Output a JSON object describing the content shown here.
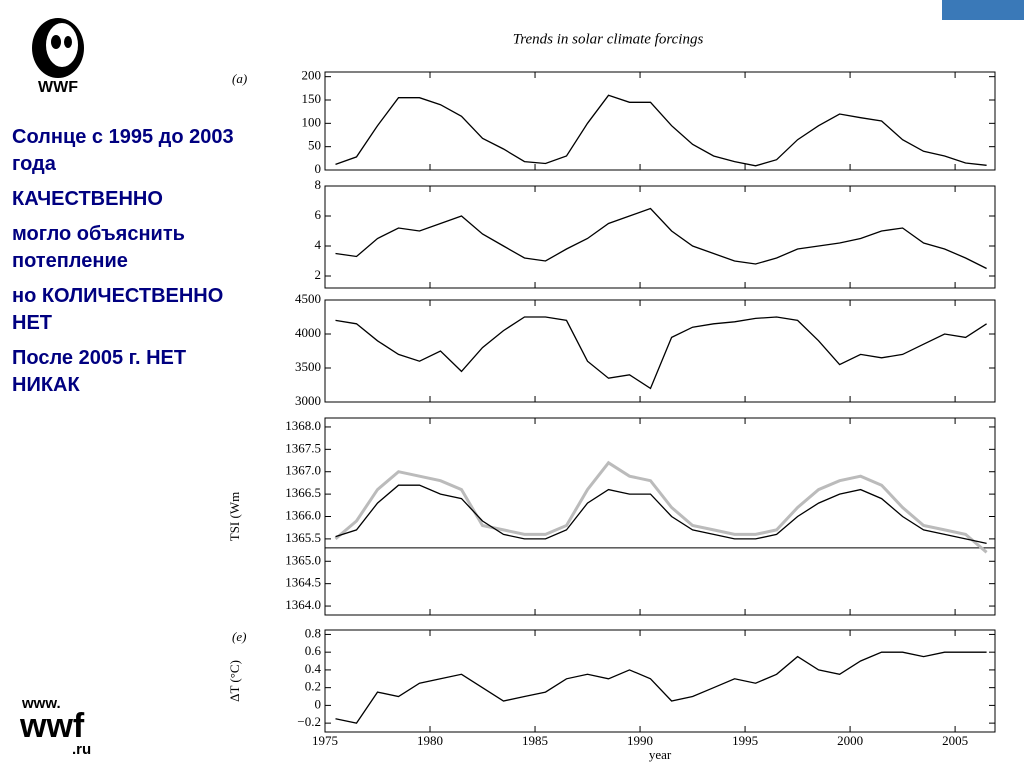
{
  "slide": {
    "logo": "WWF",
    "lines": [
      "Солнце с 1995 до 2003 года",
      "КАЧЕСТВЕННО",
      "могло объяснить потепление",
      "но КОЛИЧЕСТВЕННО НЕТ",
      "После 2005 г. НЕТ НИКАК"
    ],
    "footer": [
      "www.",
      "wwf",
      ".ru"
    ]
  },
  "chart_data": [
    {
      "type": "line",
      "title": "Trends in solar climate forcings",
      "label": "(a)",
      "xlim": [
        1975,
        2006.9
      ],
      "ylim": [
        0,
        210
      ],
      "yticks": [
        0,
        50,
        100,
        150,
        200
      ],
      "x": [
        1975.5,
        1976.5,
        1977.5,
        1978.5,
        1979.5,
        1980.5,
        1981.5,
        1982.5,
        1983.5,
        1984.5,
        1985.5,
        1986.5,
        1987.5,
        1988.5,
        1989.5,
        1990.5,
        1991.5,
        1992.5,
        1993.5,
        1994.5,
        1995.5,
        1996.5,
        1997.5,
        1998.5,
        1999.5,
        2000.5,
        2001.5,
        2002.5,
        2003.5,
        2004.5,
        2005.5,
        2006.5
      ],
      "series": [
        {
          "color": "#000000",
          "values": [
            12,
            28,
            95,
            155,
            155,
            140,
            115,
            68,
            45,
            18,
            14,
            30,
            100,
            160,
            145,
            145,
            95,
            55,
            30,
            18,
            9,
            22,
            65,
            95,
            120,
            112,
            105,
            65,
            40,
            30,
            15,
            10
          ]
        }
      ]
    },
    {
      "type": "line",
      "xlim": [
        1975,
        2006.9
      ],
      "ylim": [
        1.2,
        8
      ],
      "yticks": [
        2,
        4,
        6,
        8
      ],
      "x": [
        1975.5,
        1976.5,
        1977.5,
        1978.5,
        1979.5,
        1980.5,
        1981.5,
        1982.5,
        1983.5,
        1984.5,
        1985.5,
        1986.5,
        1987.5,
        1988.5,
        1989.5,
        1990.5,
        1991.5,
        1992.5,
        1993.5,
        1994.5,
        1995.5,
        1996.5,
        1997.5,
        1998.5,
        1999.5,
        2000.5,
        2001.5,
        2002.5,
        2003.5,
        2004.5,
        2005.5,
        2006.5
      ],
      "series": [
        {
          "color": "#000000",
          "values": [
            3.5,
            3.3,
            4.5,
            5.2,
            5.0,
            5.5,
            6.0,
            4.8,
            4.0,
            3.2,
            3.0,
            3.8,
            4.5,
            5.5,
            6.0,
            6.5,
            5.0,
            4.0,
            3.5,
            3.0,
            2.8,
            3.2,
            3.8,
            4.0,
            4.2,
            4.5,
            5.0,
            5.2,
            4.2,
            3.8,
            3.2,
            2.5
          ]
        }
      ]
    },
    {
      "type": "line",
      "xlim": [
        1975,
        2006.9
      ],
      "ylim": [
        3000,
        4500
      ],
      "yticks": [
        3000,
        3500,
        4000,
        4500
      ],
      "x": [
        1975.5,
        1976.5,
        1977.5,
        1978.5,
        1979.5,
        1980.5,
        1981.5,
        1982.5,
        1983.5,
        1984.5,
        1985.5,
        1986.5,
        1987.5,
        1988.5,
        1989.5,
        1990.5,
        1991.5,
        1992.5,
        1993.5,
        1994.5,
        1995.5,
        1996.5,
        1997.5,
        1998.5,
        1999.5,
        2000.5,
        2001.5,
        2002.5,
        2003.5,
        2004.5,
        2005.5,
        2006.5
      ],
      "series": [
        {
          "color": "#000000",
          "values": [
            4200,
            4150,
            3900,
            3700,
            3600,
            3750,
            3450,
            3800,
            4050,
            4250,
            4250,
            4200,
            3600,
            3350,
            3400,
            3200,
            3950,
            4100,
            4150,
            4180,
            4230,
            4250,
            4200,
            3900,
            3550,
            3700,
            3650,
            3700,
            3850,
            4000,
            3950,
            4150
          ]
        }
      ]
    },
    {
      "type": "line",
      "ylabel": "TSI (Wm",
      "xlim": [
        1975,
        2006.9
      ],
      "ylim": [
        1363.8,
        1368.2
      ],
      "yticks": [
        {
          "value": 1364,
          "label": "1364.0"
        },
        1364.5,
        {
          "value": 1365,
          "label": "1365.0"
        },
        1365.5,
        {
          "value": 1366,
          "label": "1366.0"
        },
        1366.5,
        {
          "value": 1367,
          "label": "1367.0"
        },
        1367.5,
        {
          "value": 1368,
          "label": "1368.0"
        }
      ],
      "hline": 1365.3,
      "x": [
        1975.5,
        1976.5,
        1977.5,
        1978.5,
        1979.5,
        1980.5,
        1981.5,
        1982.5,
        1983.5,
        1984.5,
        1985.5,
        1986.5,
        1987.5,
        1988.5,
        1989.5,
        1990.5,
        1991.5,
        1992.5,
        1993.5,
        1994.5,
        1995.5,
        1996.5,
        1997.5,
        1998.5,
        1999.5,
        2000.5,
        2001.5,
        2002.5,
        2003.5,
        2004.5,
        2005.5,
        2006.5
      ],
      "series": [
        {
          "color": "#bbbbbb",
          "values": [
            1365.5,
            1365.9,
            1366.6,
            1367.0,
            1366.9,
            1366.8,
            1366.6,
            1365.8,
            1365.7,
            1365.6,
            1365.6,
            1365.8,
            1366.6,
            1367.2,
            1366.9,
            1366.8,
            1366.2,
            1365.8,
            1365.7,
            1365.6,
            1365.6,
            1365.7,
            1366.2,
            1366.6,
            1366.8,
            1366.9,
            1366.7,
            1366.2,
            1365.8,
            1365.7,
            1365.6,
            1365.2
          ]
        },
        {
          "color": "#000000",
          "values": [
            1365.55,
            1365.7,
            1366.3,
            1366.7,
            1366.7,
            1366.5,
            1366.4,
            1365.9,
            1365.6,
            1365.5,
            1365.5,
            1365.7,
            1366.3,
            1366.6,
            1366.5,
            1366.5,
            1366.0,
            1365.7,
            1365.6,
            1365.5,
            1365.5,
            1365.6,
            1366.0,
            1366.3,
            1366.5,
            1366.6,
            1366.4,
            1366.0,
            1365.7,
            1365.6,
            1365.5,
            1365.4
          ]
        }
      ]
    },
    {
      "type": "line",
      "label": "(e)",
      "ylabel": "ΔT (°C)",
      "xlabel": "year",
      "xlim": [
        1975,
        2006.9
      ],
      "ylim": [
        -0.3,
        0.85
      ],
      "yticks": [
        {
          "value": -0.2,
          "label": "−0.2"
        },
        0,
        0.2,
        0.4,
        0.6,
        0.8
      ],
      "xticks": [
        1975,
        1980,
        1985,
        1990,
        1995,
        2000,
        2005
      ],
      "x": [
        1975.5,
        1976.5,
        1977.5,
        1978.5,
        1979.5,
        1980.5,
        1981.5,
        1982.5,
        1983.5,
        1984.5,
        1985.5,
        1986.5,
        1987.5,
        1988.5,
        1989.5,
        1990.5,
        1991.5,
        1992.5,
        1993.5,
        1994.5,
        1995.5,
        1996.5,
        1997.5,
        1998.5,
        1999.5,
        2000.5,
        2001.5,
        2002.5,
        2003.5,
        2004.5,
        2005.5,
        2006.5
      ],
      "series": [
        {
          "color": "#000000",
          "values": [
            -0.15,
            -0.2,
            0.15,
            0.1,
            0.25,
            0.3,
            0.35,
            0.2,
            0.05,
            0.1,
            0.15,
            0.3,
            0.35,
            0.3,
            0.4,
            0.3,
            0.05,
            0.1,
            0.2,
            0.3,
            0.25,
            0.35,
            0.55,
            0.4,
            0.35,
            0.5,
            0.6,
            0.6,
            0.55,
            0.6,
            0.6,
            0.6
          ]
        }
      ]
    }
  ]
}
